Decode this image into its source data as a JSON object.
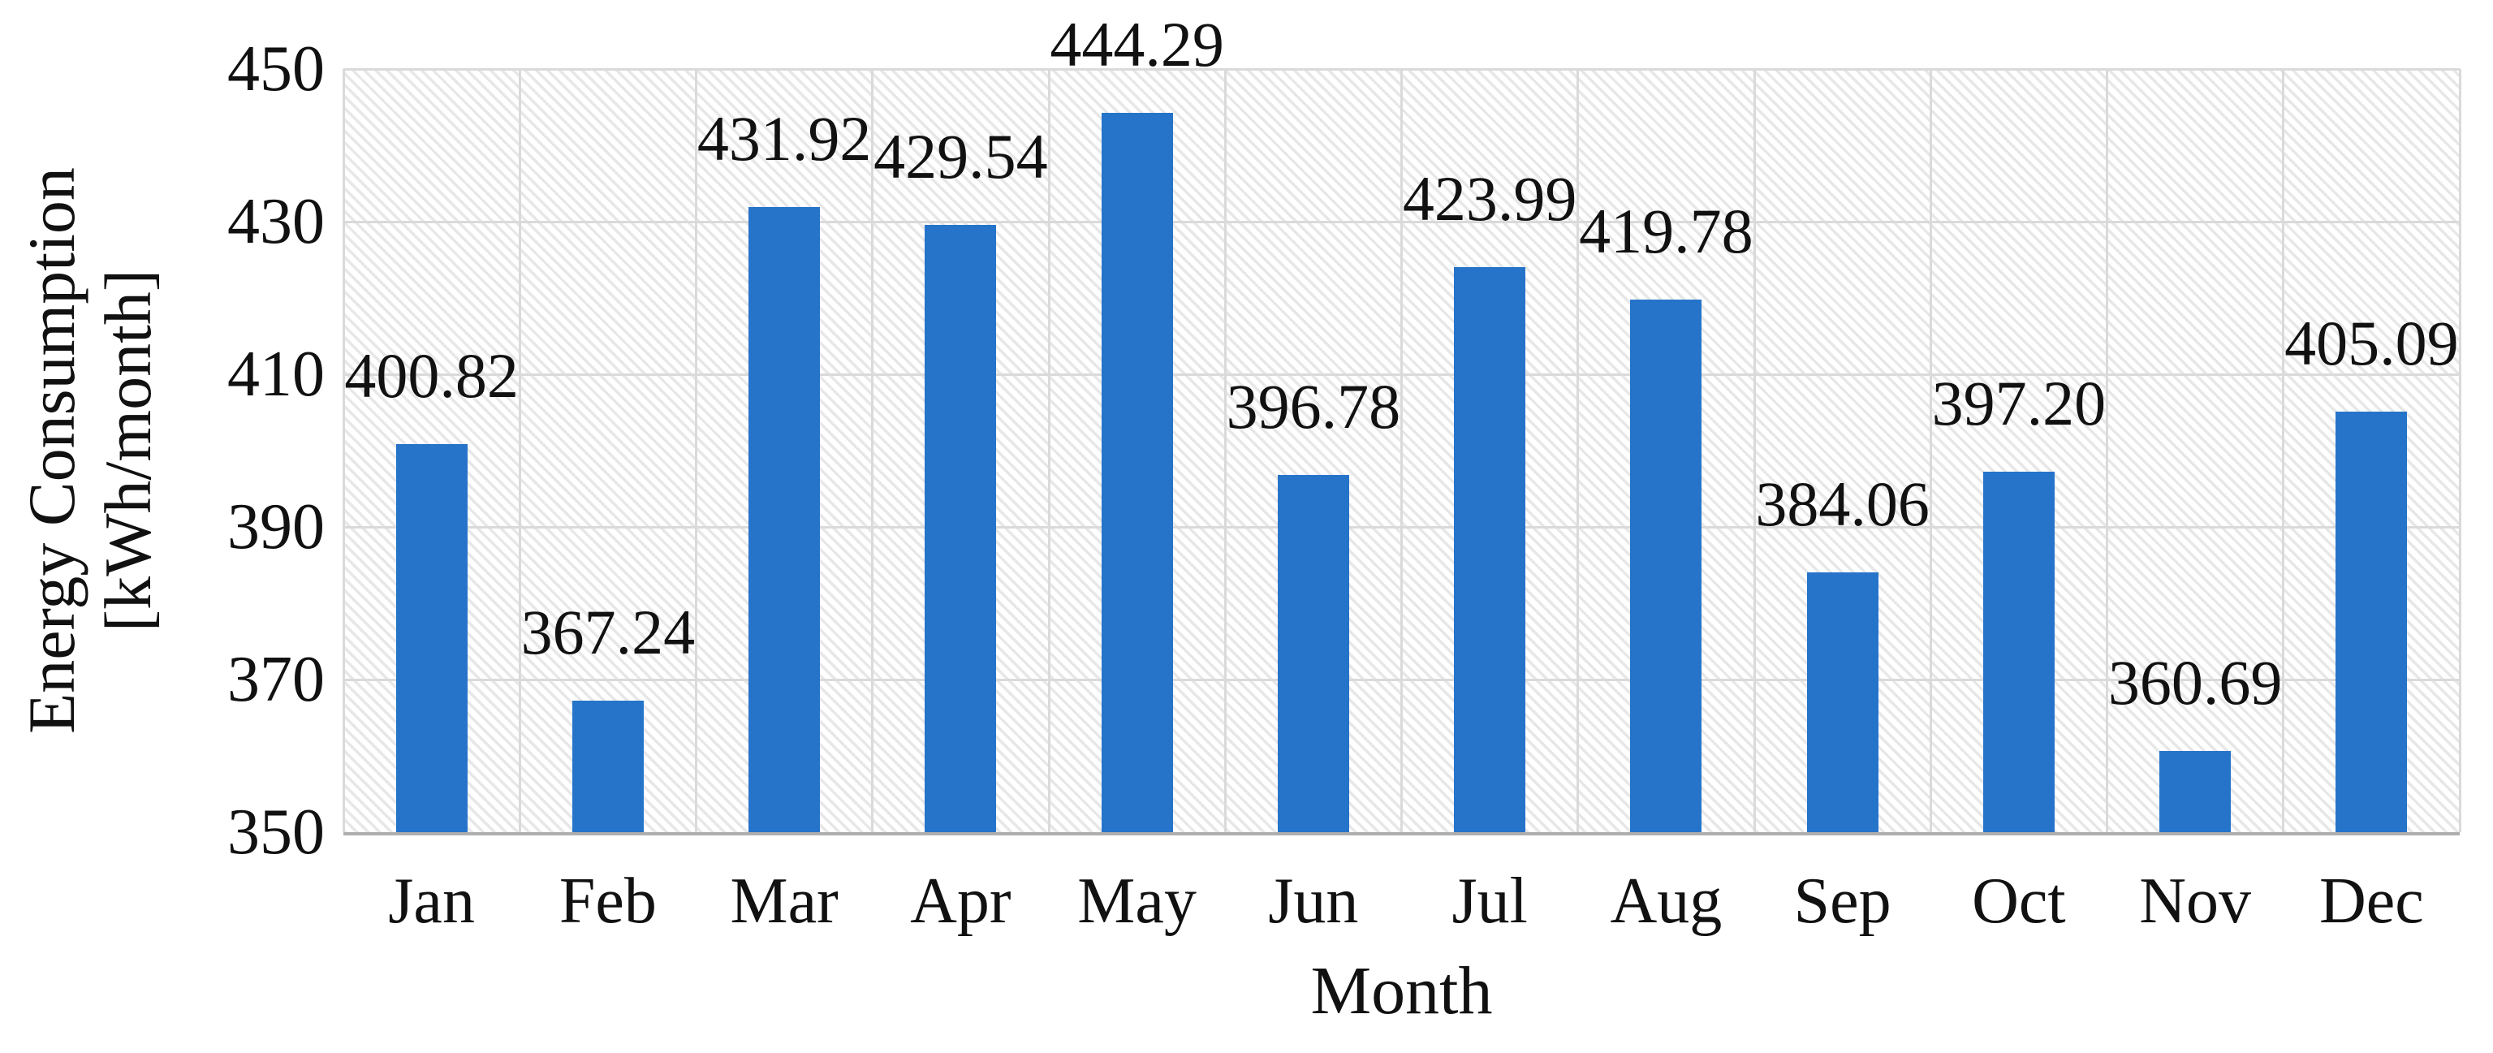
{
  "chart_data": {
    "type": "bar",
    "title": "",
    "xlabel": "Month",
    "ylabel": "Energy Consumption [kWh/month]",
    "ylabel_line1": "Energy Consumption",
    "ylabel_line2": "[kWh/month]",
    "categories": [
      "Jan",
      "Feb",
      "Mar",
      "Apr",
      "May",
      "Jun",
      "Jul",
      "Aug",
      "Sep",
      "Oct",
      "Nov",
      "Dec"
    ],
    "values": [
      400.82,
      367.24,
      431.92,
      429.54,
      444.29,
      396.78,
      423.99,
      419.78,
      384.06,
      397.2,
      360.69,
      405.09
    ],
    "value_labels": [
      "400.82",
      "367.24",
      "431.92",
      "429.54",
      "444.29",
      "396.78",
      "423.99",
      "419.78",
      "384.06",
      "397.20",
      "360.69",
      "405.09"
    ],
    "ylim": [
      350,
      450
    ],
    "yticks": [
      350,
      370,
      390,
      410,
      430,
      450
    ],
    "ytick_labels": [
      "350",
      "370",
      "390",
      "410",
      "430",
      "450"
    ],
    "legend": "none",
    "grid": "horizontal gridlines at y ticks and vertical gridlines at category boundaries",
    "plot_background": "light diagonal hatch (top-left to bottom-right)",
    "data_label_position": "outside end (above bars)",
    "colors": {
      "bar": "#2674ca",
      "gridline": "#dadada",
      "hatch_line": "#e7e7e7",
      "axis_line": "#aeaeae",
      "text": "#111111",
      "background": "#ffffff"
    }
  }
}
